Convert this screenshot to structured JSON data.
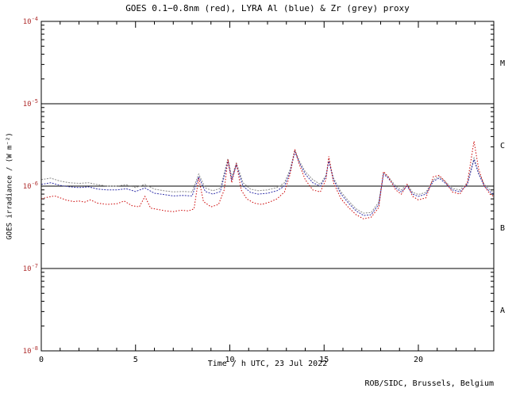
{
  "chart_data": {
    "type": "line",
    "title": "GOES 0.1−0.8nm (red), LYRA Al (blue) & Zr (grey) proxy",
    "xlabel": "Time / h UTC, 23 Jul 2022",
    "ylabel": "GOES irradiance / (W m⁻²)",
    "credit": "ROB/SIDC, Brussels, Belgium",
    "xlim": [
      0,
      24
    ],
    "ylim": [
      1e-08,
      0.0001
    ],
    "x_major_ticks": [
      0,
      5,
      10,
      15,
      20
    ],
    "x_minor_step": 1,
    "y_decades": [
      -4,
      -5,
      -6,
      -7,
      -8
    ],
    "boundary_lines": [
      1e-05,
      1e-06,
      1e-07
    ],
    "flare_classes": [
      {
        "label": "M",
        "low": 1e-05,
        "high": 0.0001
      },
      {
        "label": "C",
        "low": 1e-06,
        "high": 1e-05
      },
      {
        "label": "B",
        "low": 1e-07,
        "high": 1e-06
      },
      {
        "label": "A",
        "low": 1e-08,
        "high": 1e-07
      }
    ],
    "axis_color": "#000000",
    "tick_label_color": "#b03030",
    "grid": false,
    "legend_position": "in-title",
    "series": [
      {
        "name": "LYRA Zr proxy (grey)",
        "color": "#8a8a8a",
        "dash": "2 1.5",
        "points": [
          [
            0,
            1.2e-06
          ],
          [
            0.5,
            1.25e-06
          ],
          [
            1.0,
            1.15e-06
          ],
          [
            1.5,
            1.1e-06
          ],
          [
            2.0,
            1.08e-06
          ],
          [
            2.5,
            1.1e-06
          ],
          [
            3.0,
            1.04e-06
          ],
          [
            3.5,
            1e-06
          ],
          [
            4.0,
            1e-06
          ],
          [
            4.5,
            1.04e-06
          ],
          [
            5.0,
            9.6e-07
          ],
          [
            5.5,
            1.05e-06
          ],
          [
            6.0,
            9.2e-07
          ],
          [
            6.5,
            8.8e-07
          ],
          [
            7.0,
            8.5e-07
          ],
          [
            7.5,
            8.6e-07
          ],
          [
            8.0,
            8.5e-07
          ],
          [
            8.35,
            1.4e-06
          ],
          [
            8.7,
            9.5e-07
          ],
          [
            9.1,
            8.8e-07
          ],
          [
            9.5,
            9.4e-07
          ],
          [
            9.9,
            2.15e-06
          ],
          [
            10.1,
            1.3e-06
          ],
          [
            10.35,
            1.9e-06
          ],
          [
            10.7,
            1.1e-06
          ],
          [
            11.1,
            9.2e-07
          ],
          [
            11.5,
            8.8e-07
          ],
          [
            12.0,
            9e-07
          ],
          [
            12.5,
            9.6e-07
          ],
          [
            12.9,
            1.1e-06
          ],
          [
            13.2,
            1.6e-06
          ],
          [
            13.45,
            2.75e-06
          ],
          [
            13.7,
            2e-06
          ],
          [
            14.0,
            1.5e-06
          ],
          [
            14.4,
            1.2e-06
          ],
          [
            14.8,
            1.05e-06
          ],
          [
            15.1,
            1.35e-06
          ],
          [
            15.25,
            2.1e-06
          ],
          [
            15.5,
            1.25e-06
          ],
          [
            15.9,
            8.5e-07
          ],
          [
            16.3,
            6.6e-07
          ],
          [
            16.7,
            5.3e-07
          ],
          [
            17.1,
            4.7e-07
          ],
          [
            17.5,
            4.8e-07
          ],
          [
            17.9,
            6.4e-07
          ],
          [
            18.15,
            1.45e-06
          ],
          [
            18.4,
            1.3e-06
          ],
          [
            18.8,
            1e-06
          ],
          [
            19.1,
            9e-07
          ],
          [
            19.4,
            1.05e-06
          ],
          [
            19.7,
            8.4e-07
          ],
          [
            20.0,
            7.9e-07
          ],
          [
            20.4,
            8.4e-07
          ],
          [
            20.8,
            1.2e-06
          ],
          [
            21.1,
            1.3e-06
          ],
          [
            21.4,
            1.15e-06
          ],
          [
            21.8,
            9.4e-07
          ],
          [
            22.2,
            9e-07
          ],
          [
            22.6,
            1.1e-06
          ],
          [
            22.95,
            2.2e-06
          ],
          [
            23.2,
            1.45e-06
          ],
          [
            23.5,
            1.05e-06
          ],
          [
            23.8,
            9e-07
          ],
          [
            24,
            8.4e-07
          ]
        ]
      },
      {
        "name": "LYRA Al proxy (blue)",
        "color": "#3333aa",
        "dash": "2 1.5",
        "points": [
          [
            0,
            1.05e-06
          ],
          [
            0.5,
            1.1e-06
          ],
          [
            1.0,
            1.02e-06
          ],
          [
            1.5,
            9.8e-07
          ],
          [
            2.0,
            9.6e-07
          ],
          [
            2.5,
            9.8e-07
          ],
          [
            3.0,
            9.2e-07
          ],
          [
            3.5,
            9e-07
          ],
          [
            4.0,
            9e-07
          ],
          [
            4.5,
            9.3e-07
          ],
          [
            5.0,
            8.6e-07
          ],
          [
            5.5,
            9.5e-07
          ],
          [
            6.0,
            8.2e-07
          ],
          [
            6.5,
            7.9e-07
          ],
          [
            7.0,
            7.6e-07
          ],
          [
            7.5,
            7.7e-07
          ],
          [
            8.0,
            7.6e-07
          ],
          [
            8.35,
            1.3e-06
          ],
          [
            8.7,
            8.6e-07
          ],
          [
            9.1,
            8e-07
          ],
          [
            9.5,
            8.6e-07
          ],
          [
            9.9,
            2e-06
          ],
          [
            10.1,
            1.2e-06
          ],
          [
            10.35,
            1.8e-06
          ],
          [
            10.7,
            1e-06
          ],
          [
            11.1,
            8.4e-07
          ],
          [
            11.5,
            8e-07
          ],
          [
            12.0,
            8.2e-07
          ],
          [
            12.5,
            8.8e-07
          ],
          [
            12.9,
            1e-06
          ],
          [
            13.2,
            1.5e-06
          ],
          [
            13.45,
            2.6e-06
          ],
          [
            13.7,
            1.9e-06
          ],
          [
            14.0,
            1.4e-06
          ],
          [
            14.4,
            1.1e-06
          ],
          [
            14.8,
            1e-06
          ],
          [
            15.1,
            1.3e-06
          ],
          [
            15.25,
            2e-06
          ],
          [
            15.5,
            1.2e-06
          ],
          [
            15.9,
            8e-07
          ],
          [
            16.3,
            6.2e-07
          ],
          [
            16.7,
            5e-07
          ],
          [
            17.1,
            4.4e-07
          ],
          [
            17.5,
            4.5e-07
          ],
          [
            17.9,
            6e-07
          ],
          [
            18.15,
            1.4e-06
          ],
          [
            18.4,
            1.25e-06
          ],
          [
            18.8,
            9.5e-07
          ],
          [
            19.1,
            8.5e-07
          ],
          [
            19.4,
            1e-06
          ],
          [
            19.7,
            8e-07
          ],
          [
            20.0,
            7.5e-07
          ],
          [
            20.4,
            8e-07
          ],
          [
            20.8,
            1.15e-06
          ],
          [
            21.1,
            1.25e-06
          ],
          [
            21.4,
            1.1e-06
          ],
          [
            21.8,
            9e-07
          ],
          [
            22.2,
            8.5e-07
          ],
          [
            22.6,
            1.05e-06
          ],
          [
            22.95,
            2.1e-06
          ],
          [
            23.2,
            1.4e-06
          ],
          [
            23.5,
            1e-06
          ],
          [
            23.8,
            8.5e-07
          ],
          [
            24,
            8e-07
          ]
        ]
      },
      {
        "name": "GOES 0.1-0.8nm (red)",
        "color": "#cc0000",
        "dash": "1.5 2",
        "points": [
          [
            0,
            7e-07
          ],
          [
            0.3,
            7.3e-07
          ],
          [
            0.7,
            7.6e-07
          ],
          [
            1.0,
            7.2e-07
          ],
          [
            1.3,
            6.8e-07
          ],
          [
            1.7,
            6.5e-07
          ],
          [
            2.0,
            6.6e-07
          ],
          [
            2.3,
            6.4e-07
          ],
          [
            2.6,
            6.8e-07
          ],
          [
            3.0,
            6.2e-07
          ],
          [
            3.5,
            6e-07
          ],
          [
            4.0,
            6.1e-07
          ],
          [
            4.4,
            6.6e-07
          ],
          [
            4.8,
            5.8e-07
          ],
          [
            5.2,
            5.6e-07
          ],
          [
            5.5,
            7.5e-07
          ],
          [
            5.8,
            5.4e-07
          ],
          [
            6.2,
            5.2e-07
          ],
          [
            6.6,
            5e-07
          ],
          [
            7.0,
            4.9e-07
          ],
          [
            7.4,
            5.1e-07
          ],
          [
            7.8,
            5e-07
          ],
          [
            8.1,
            5.3e-07
          ],
          [
            8.35,
            1.25e-06
          ],
          [
            8.6,
            6.5e-07
          ],
          [
            9.0,
            5.6e-07
          ],
          [
            9.4,
            6e-07
          ],
          [
            9.7,
            9e-07
          ],
          [
            9.9,
            2.1e-06
          ],
          [
            10.1,
            1.1e-06
          ],
          [
            10.35,
            1.9e-06
          ],
          [
            10.6,
            9e-07
          ],
          [
            10.9,
            7e-07
          ],
          [
            11.3,
            6.2e-07
          ],
          [
            11.7,
            6e-07
          ],
          [
            12.1,
            6.4e-07
          ],
          [
            12.5,
            7e-07
          ],
          [
            12.9,
            8.5e-07
          ],
          [
            13.2,
            1.4e-06
          ],
          [
            13.45,
            2.8e-06
          ],
          [
            13.7,
            1.8e-06
          ],
          [
            14.0,
            1.2e-06
          ],
          [
            14.4,
            9e-07
          ],
          [
            14.8,
            8.5e-07
          ],
          [
            15.1,
            1.2e-06
          ],
          [
            15.25,
            2.3e-06
          ],
          [
            15.5,
            1.1e-06
          ],
          [
            15.9,
            7e-07
          ],
          [
            16.3,
            5.5e-07
          ],
          [
            16.7,
            4.5e-07
          ],
          [
            17.1,
            4e-07
          ],
          [
            17.5,
            4.2e-07
          ],
          [
            17.9,
            5.5e-07
          ],
          [
            18.15,
            1.5e-06
          ],
          [
            18.4,
            1.3e-06
          ],
          [
            18.8,
            9e-07
          ],
          [
            19.1,
            8e-07
          ],
          [
            19.4,
            1.05e-06
          ],
          [
            19.7,
            7.5e-07
          ],
          [
            20.0,
            6.8e-07
          ],
          [
            20.4,
            7.2e-07
          ],
          [
            20.8,
            1.3e-06
          ],
          [
            21.1,
            1.35e-06
          ],
          [
            21.4,
            1.15e-06
          ],
          [
            21.8,
            8.5e-07
          ],
          [
            22.2,
            8e-07
          ],
          [
            22.6,
            1.1e-06
          ],
          [
            22.95,
            3.5e-06
          ],
          [
            23.2,
            1.6e-06
          ],
          [
            23.5,
            1e-06
          ],
          [
            23.8,
            8e-07
          ],
          [
            24,
            7.5e-07
          ]
        ]
      }
    ]
  }
}
